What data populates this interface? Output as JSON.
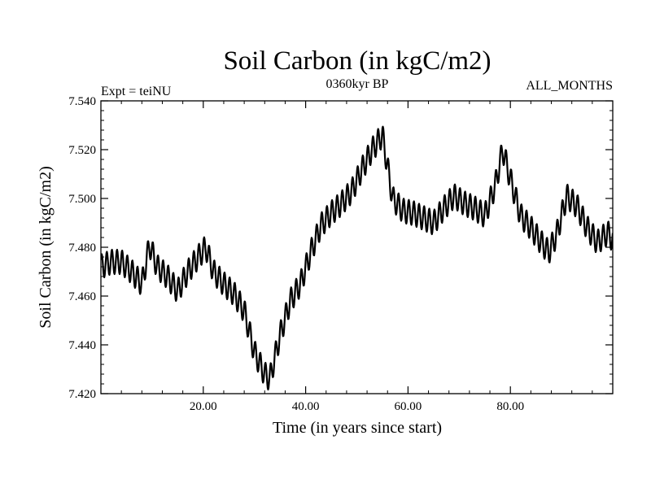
{
  "chart_data": {
    "type": "line",
    "title": "Soil Carbon (in kgC/m2)",
    "subtitle_left": "Expt = teiNU",
    "subtitle_center": "0360kyr BP",
    "subtitle_right": "ALL_MONTHS",
    "xlabel": "Time (in years since start)",
    "ylabel": "Soil Carbon (in kgC/m2)",
    "xlim": [
      0,
      100
    ],
    "ylim": [
      7.42,
      7.54
    ],
    "x_ticks": [
      20,
      40,
      60,
      80
    ],
    "x_tick_labels": [
      "20.00",
      "40.00",
      "60.00",
      "80.00"
    ],
    "y_ticks": [
      7.42,
      7.44,
      7.46,
      7.48,
      7.5,
      7.52,
      7.54
    ],
    "y_tick_labels": [
      "7.420",
      "7.440",
      "7.460",
      "7.480",
      "7.500",
      "7.520",
      "7.540"
    ],
    "line_color": "#000000",
    "seasonal_amplitude": 0.005,
    "trend": {
      "x": [
        0,
        2,
        4,
        6,
        8,
        9.5,
        11,
        13,
        15,
        17,
        19,
        20.5,
        22,
        24,
        26,
        28,
        30,
        32,
        33,
        35,
        37,
        39,
        41,
        43,
        45,
        47,
        49,
        51,
        53,
        55,
        57,
        59,
        61,
        63,
        65,
        67,
        69,
        71,
        73,
        75,
        77,
        78.5,
        80,
        82,
        84,
        86,
        87.5,
        89,
        91,
        93,
        95,
        97,
        99,
        100
      ],
      "y": [
        7.472,
        7.474,
        7.474,
        7.47,
        7.465,
        7.481,
        7.472,
        7.468,
        7.462,
        7.47,
        7.476,
        7.48,
        7.47,
        7.465,
        7.461,
        7.454,
        7.437,
        7.428,
        7.426,
        7.444,
        7.458,
        7.465,
        7.478,
        7.489,
        7.494,
        7.498,
        7.503,
        7.512,
        7.52,
        7.526,
        7.5,
        7.495,
        7.494,
        7.492,
        7.49,
        7.496,
        7.501,
        7.498,
        7.496,
        7.493,
        7.505,
        7.52,
        7.508,
        7.493,
        7.488,
        7.482,
        7.478,
        7.485,
        7.501,
        7.497,
        7.488,
        7.482,
        7.486,
        7.483
      ]
    }
  }
}
